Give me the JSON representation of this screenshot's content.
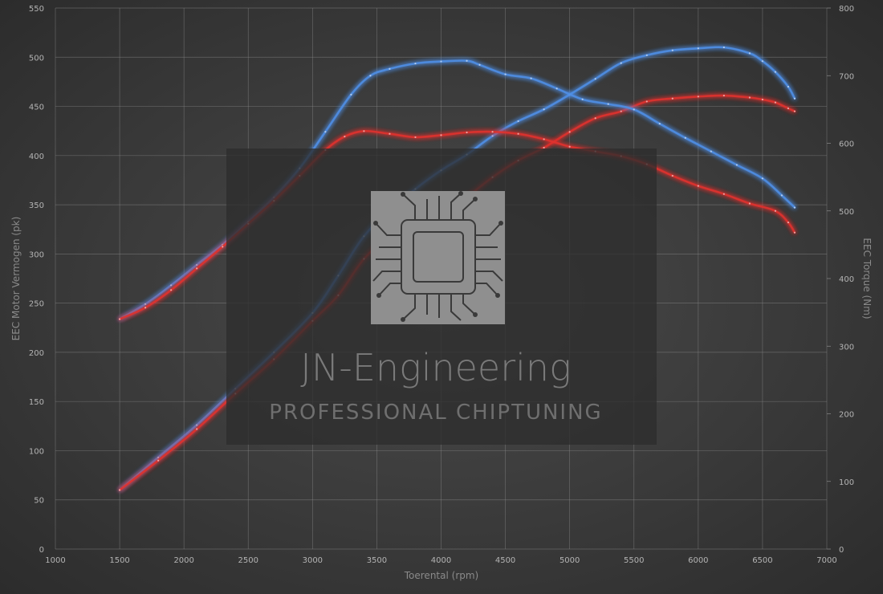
{
  "chart_data": {
    "type": "line",
    "xlabel": "Toerental (rpm)",
    "ylabel_left": "EEC Motor Vermogen (pk)",
    "ylabel_right": "EEC Torque (Nm)",
    "xlim": [
      1000,
      7000
    ],
    "ylim_left": [
      0,
      550
    ],
    "ylim_right": [
      0,
      800
    ],
    "x_ticks": [
      1000,
      1500,
      2000,
      2500,
      3000,
      3500,
      4000,
      4500,
      5000,
      5500,
      6000,
      6500,
      7000
    ],
    "y_ticks_left": [
      0,
      50,
      100,
      150,
      200,
      250,
      300,
      350,
      400,
      450,
      500,
      550
    ],
    "y_ticks_right": [
      0,
      100,
      200,
      300,
      400,
      500,
      600,
      700,
      800
    ],
    "grid": true,
    "series": [
      {
        "color": "#4f8fe6",
        "axis": "left",
        "x": [
          1500,
          1800,
          2100,
          2400,
          2700,
          3000,
          3200,
          3400,
          3600,
          3800,
          4000,
          4200,
          4400,
          4600,
          4800,
          5000,
          5200,
          5400,
          5600,
          5800,
          6000,
          6200,
          6400,
          6500,
          6600,
          6700,
          6750
        ],
        "y": [
          60,
          93,
          126,
          163,
          200,
          240,
          278,
          318,
          344,
          366,
          385,
          401,
          420,
          435,
          447,
          462,
          478,
          494,
          502,
          507,
          509,
          510,
          504,
          496,
          485,
          470,
          458
        ]
      },
      {
        "color": "#e0302e",
        "axis": "left",
        "x": [
          1500,
          1800,
          2100,
          2400,
          2700,
          3000,
          3200,
          3400,
          3600,
          3800,
          4000,
          4200,
          4400,
          4600,
          4800,
          5000,
          5200,
          5400,
          5600,
          5800,
          6000,
          6200,
          6400,
          6500,
          6600,
          6700,
          6750
        ],
        "y": [
          60,
          90,
          122,
          158,
          193,
          232,
          258,
          295,
          318,
          332,
          343,
          358,
          378,
          395,
          408,
          424,
          438,
          445,
          455,
          458,
          460,
          461,
          459,
          457,
          454,
          448,
          445
        ]
      },
      {
        "color": "#4f8fe6",
        "axis": "right",
        "x": [
          1500,
          1700,
          1900,
          2100,
          2300,
          2500,
          2700,
          2900,
          3100,
          3300,
          3450,
          3600,
          3800,
          4000,
          4200,
          4300,
          4500,
          4700,
          4900,
          5100,
          5300,
          5500,
          5700,
          5900,
          6100,
          6300,
          6500,
          6650,
          6750
        ],
        "y": [
          340,
          362,
          390,
          420,
          450,
          484,
          520,
          563,
          617,
          672,
          700,
          710,
          718,
          721,
          722,
          716,
          702,
          696,
          681,
          665,
          658,
          650,
          629,
          608,
          588,
          568,
          548,
          523,
          505
        ]
      },
      {
        "color": "#e0302e",
        "axis": "right",
        "x": [
          1500,
          1700,
          1900,
          2100,
          2300,
          2500,
          2700,
          2900,
          3100,
          3250,
          3400,
          3600,
          3800,
          4000,
          4200,
          4400,
          4600,
          4800,
          5000,
          5200,
          5400,
          5600,
          5800,
          6000,
          6200,
          6400,
          6600,
          6700,
          6750
        ],
        "y": [
          340,
          357,
          383,
          415,
          447,
          481,
          515,
          552,
          590,
          610,
          618,
          614,
          609,
          612,
          616,
          617,
          614,
          606,
          595,
          588,
          581,
          569,
          552,
          537,
          525,
          511,
          500,
          483,
          468
        ]
      }
    ]
  },
  "watermark": {
    "title": "JN-Engineering",
    "subtitle": "PROFESSIONAL CHIPTUNING",
    "icon": "chip-icon"
  }
}
